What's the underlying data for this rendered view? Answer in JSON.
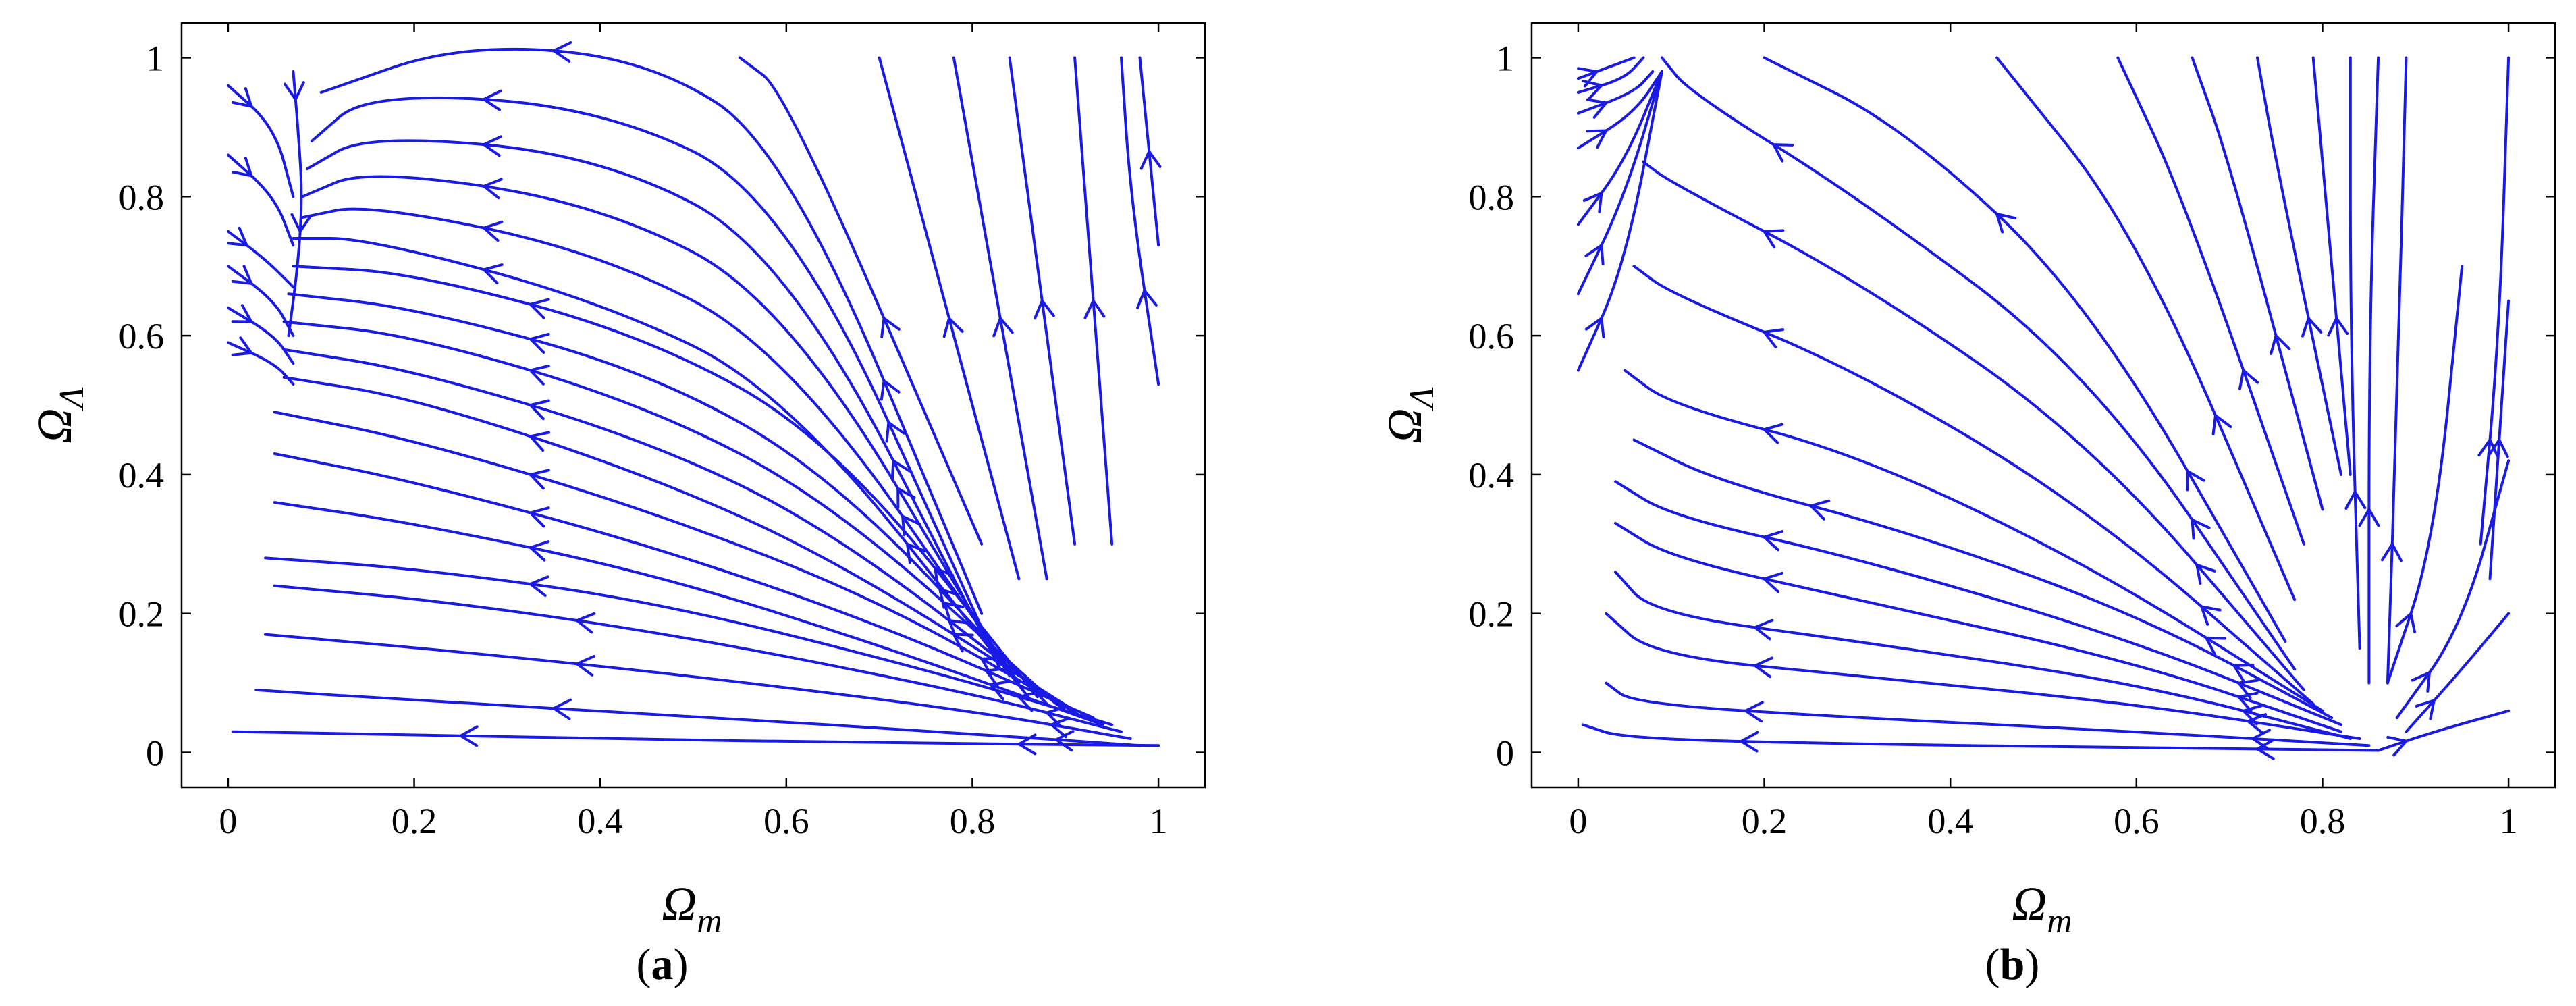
{
  "colors": {
    "stream": "#1a1ae6",
    "frame": "#000000",
    "background": "#ffffff"
  },
  "chart_data": [
    {
      "type": "streamplot",
      "panel_label": {
        "open": "(",
        "letter": "a",
        "close": ")"
      },
      "xlabel": {
        "main": "Ω",
        "sub": "m"
      },
      "ylabel": {
        "main": "Ω",
        "sub": "Λ"
      },
      "xlim": [
        -0.05,
        1.05
      ],
      "ylim": [
        -0.05,
        1.05
      ],
      "xticks": [
        0,
        0.2,
        0.4,
        0.6,
        0.8,
        1
      ],
      "xtick_labels": [
        "0",
        "0.2",
        "0.4",
        "0.6",
        "0.8",
        "1"
      ],
      "yticks": [
        0,
        0.2,
        0.4,
        0.6,
        0.8,
        1
      ],
      "ytick_labels": [
        "0",
        "0.2",
        "0.4",
        "0.6",
        "0.8",
        "1"
      ],
      "grid": false,
      "flow": "from the point (1, 0) toward the line Ω_m ≈ 0.07",
      "streamlines": [
        [
          [
            1,
            0.01
          ],
          [
            0.7,
            0.014
          ],
          [
            0.4,
            0.02
          ],
          [
            0.1,
            0.028
          ],
          [
            0.005,
            0.03
          ]
        ],
        [
          [
            0.98,
            0.01
          ],
          [
            0.8,
            0.027
          ],
          [
            0.5,
            0.052
          ],
          [
            0.2,
            0.075
          ],
          [
            0.03,
            0.09
          ]
        ],
        [
          [
            0.97,
            0.02
          ],
          [
            0.8,
            0.06
          ],
          [
            0.5,
            0.11
          ],
          [
            0.25,
            0.145
          ],
          [
            0.04,
            0.17
          ]
        ],
        [
          [
            0.96,
            0.03
          ],
          [
            0.8,
            0.085
          ],
          [
            0.5,
            0.165
          ],
          [
            0.25,
            0.215
          ],
          [
            0.05,
            0.24
          ]
        ],
        [
          [
            0.95,
            0.04
          ],
          [
            0.75,
            0.12
          ],
          [
            0.45,
            0.22
          ],
          [
            0.2,
            0.265
          ],
          [
            0.04,
            0.28
          ]
        ],
        [
          [
            0.94,
            0.04
          ],
          [
            0.7,
            0.155
          ],
          [
            0.45,
            0.26
          ],
          [
            0.2,
            0.33
          ],
          [
            0.05,
            0.36
          ]
        ],
        [
          [
            0.93,
            0.05
          ],
          [
            0.7,
            0.185
          ],
          [
            0.45,
            0.3
          ],
          [
            0.2,
            0.39
          ],
          [
            0.05,
            0.43
          ]
        ],
        [
          [
            0.92,
            0.05
          ],
          [
            0.7,
            0.22
          ],
          [
            0.45,
            0.35
          ],
          [
            0.2,
            0.45
          ],
          [
            0.05,
            0.49
          ]
        ],
        [
          [
            0.91,
            0.06
          ],
          [
            0.65,
            0.28
          ],
          [
            0.45,
            0.4
          ],
          [
            0.2,
            0.51
          ],
          [
            0.06,
            0.54
          ]
        ],
        [
          [
            0.9,
            0.06
          ],
          [
            0.65,
            0.32
          ],
          [
            0.45,
            0.45
          ],
          [
            0.2,
            0.55
          ],
          [
            0.06,
            0.58
          ]
        ],
        [
          [
            0.89,
            0.07
          ],
          [
            0.65,
            0.36
          ],
          [
            0.45,
            0.5
          ],
          [
            0.2,
            0.6
          ],
          [
            0.06,
            0.62
          ]
        ],
        [
          [
            0.88,
            0.07
          ],
          [
            0.65,
            0.4
          ],
          [
            0.45,
            0.55
          ],
          [
            0.2,
            0.64
          ],
          [
            0.065,
            0.66
          ]
        ],
        [
          [
            0.87,
            0.08
          ],
          [
            0.65,
            0.45
          ],
          [
            0.45,
            0.6
          ],
          [
            0.2,
            0.69
          ],
          [
            0.07,
            0.7
          ]
        ],
        [
          [
            0.86,
            0.08
          ],
          [
            0.6,
            0.52
          ],
          [
            0.4,
            0.65
          ],
          [
            0.15,
            0.74
          ],
          [
            0.07,
            0.74
          ]
        ],
        [
          [
            0.85,
            0.1
          ],
          [
            0.6,
            0.58
          ],
          [
            0.4,
            0.72
          ],
          [
            0.15,
            0.79
          ],
          [
            0.08,
            0.77
          ]
        ],
        [
          [
            0.84,
            0.11
          ],
          [
            0.6,
            0.65
          ],
          [
            0.4,
            0.79
          ],
          [
            0.15,
            0.84
          ],
          [
            0.08,
            0.8
          ]
        ],
        [
          [
            0.83,
            0.12
          ],
          [
            0.6,
            0.72
          ],
          [
            0.4,
            0.86
          ],
          [
            0.15,
            0.89
          ],
          [
            0.085,
            0.84
          ]
        ],
        [
          [
            0.82,
            0.15
          ],
          [
            0.6,
            0.8
          ],
          [
            0.4,
            0.93
          ],
          [
            0.15,
            0.95
          ],
          [
            0.09,
            0.88
          ]
        ],
        [
          [
            0.81,
            0.2
          ],
          [
            0.6,
            0.87
          ],
          [
            0.45,
            1
          ],
          [
            0.25,
            1.02
          ],
          [
            0.1,
            0.95
          ]
        ],
        [
          [
            0.81,
            0.3
          ],
          [
            0.6,
            0.95
          ],
          [
            0.55,
            1
          ]
        ],
        [
          [
            0.85,
            0.25
          ],
          [
            0.7,
            1
          ]
        ],
        [
          [
            0.88,
            0.25
          ],
          [
            0.78,
            1
          ]
        ],
        [
          [
            0.91,
            0.3
          ],
          [
            0.84,
            1
          ]
        ],
        [
          [
            0.95,
            0.3
          ],
          [
            0.91,
            1
          ]
        ],
        [
          [
            1,
            0.53
          ],
          [
            0.97,
            0.8
          ],
          [
            0.96,
            1
          ]
        ],
        [
          [
            1,
            0.73
          ],
          [
            0.98,
            1
          ]
        ],
        [
          [
            0,
            0.96
          ],
          [
            0.05,
            0.9
          ],
          [
            0.07,
            0.8
          ]
        ],
        [
          [
            0,
            0.86
          ],
          [
            0.05,
            0.8
          ],
          [
            0.07,
            0.73
          ]
        ],
        [
          [
            0,
            0.75
          ],
          [
            0.04,
            0.71
          ],
          [
            0.07,
            0.67
          ]
        ],
        [
          [
            0,
            0.7
          ],
          [
            0.05,
            0.65
          ],
          [
            0.07,
            0.6
          ]
        ],
        [
          [
            0,
            0.64
          ],
          [
            0.05,
            0.6
          ],
          [
            0.07,
            0.56
          ]
        ],
        [
          [
            0,
            0.59
          ],
          [
            0.05,
            0.56
          ],
          [
            0.07,
            0.53
          ]
        ],
        [
          [
            0.07,
            0.98
          ],
          [
            0.075,
            0.9
          ],
          [
            0.08,
            0.8
          ],
          [
            0.075,
            0.7
          ],
          [
            0.065,
            0.6
          ]
        ]
      ]
    },
    {
      "type": "streamplot",
      "panel_label": {
        "open": "(",
        "letter": "b",
        "close": ")"
      },
      "xlabel": {
        "main": "Ω",
        "sub": "m"
      },
      "ylabel": {
        "main": "Ω",
        "sub": "Λ"
      },
      "xlim": [
        -0.05,
        1.05
      ],
      "ylim": [
        -0.05,
        1.05
      ],
      "xticks": [
        0,
        0.2,
        0.4,
        0.6,
        0.8,
        1
      ],
      "xtick_labels": [
        "0",
        "0.2",
        "0.4",
        "0.6",
        "0.8",
        "1"
      ],
      "yticks": [
        0,
        0.2,
        0.4,
        0.6,
        0.8,
        1
      ],
      "ytick_labels": [
        "0",
        "0.2",
        "0.4",
        "0.6",
        "0.8",
        "1"
      ],
      "grid": false,
      "flow": "from the point (0.86, 0) outward; toward Ω_m ≈ 0.09 on the left and toward Ω_m = 1 on the right",
      "streamlines": [
        [
          [
            0.86,
            0.003
          ],
          [
            0.6,
            0.007
          ],
          [
            0.3,
            0.012
          ],
          [
            0.05,
            0.02
          ],
          [
            0.005,
            0.04
          ]
        ],
        [
          [
            0.85,
            0.01
          ],
          [
            0.6,
            0.03
          ],
          [
            0.3,
            0.05
          ],
          [
            0.06,
            0.07
          ],
          [
            0.03,
            0.1
          ]
        ],
        [
          [
            0.84,
            0.02
          ],
          [
            0.6,
            0.07
          ],
          [
            0.3,
            0.11
          ],
          [
            0.08,
            0.14
          ],
          [
            0.03,
            0.2
          ]
        ],
        [
          [
            0.83,
            0.02
          ],
          [
            0.6,
            0.1
          ],
          [
            0.3,
            0.16
          ],
          [
            0.08,
            0.2
          ],
          [
            0.04,
            0.26
          ]
        ],
        [
          [
            0.82,
            0.03
          ],
          [
            0.6,
            0.13
          ],
          [
            0.3,
            0.22
          ],
          [
            0.1,
            0.28
          ],
          [
            0.04,
            0.33
          ]
        ],
        [
          [
            0.82,
            0.04
          ],
          [
            0.6,
            0.16
          ],
          [
            0.3,
            0.28
          ],
          [
            0.1,
            0.34
          ],
          [
            0.04,
            0.39
          ]
        ],
        [
          [
            0.81,
            0.05
          ],
          [
            0.6,
            0.2
          ],
          [
            0.35,
            0.32
          ],
          [
            0.15,
            0.39
          ],
          [
            0.06,
            0.45
          ]
        ],
        [
          [
            0.8,
            0.06
          ],
          [
            0.55,
            0.27
          ],
          [
            0.3,
            0.43
          ],
          [
            0.1,
            0.5
          ],
          [
            0.05,
            0.55
          ]
        ],
        [
          [
            0.79,
            0.07
          ],
          [
            0.55,
            0.35
          ],
          [
            0.3,
            0.55
          ],
          [
            0.1,
            0.66
          ],
          [
            0.06,
            0.7
          ]
        ],
        [
          [
            0.78,
            0.09
          ],
          [
            0.55,
            0.45
          ],
          [
            0.3,
            0.68
          ],
          [
            0.1,
            0.82
          ],
          [
            0.07,
            0.85
          ]
        ],
        [
          [
            0.77,
            0.12
          ],
          [
            0.55,
            0.55
          ],
          [
            0.3,
            0.8
          ],
          [
            0.12,
            0.95
          ],
          [
            0.09,
            1
          ]
        ],
        [
          [
            0.76,
            0.16
          ],
          [
            0.55,
            0.65
          ],
          [
            0.35,
            0.9
          ],
          [
            0.2,
            1
          ]
        ],
        [
          [
            0.77,
            0.22
          ],
          [
            0.6,
            0.75
          ],
          [
            0.45,
            1
          ]
        ],
        [
          [
            0.78,
            0.3
          ],
          [
            0.65,
            0.8
          ],
          [
            0.58,
            1
          ]
        ],
        [
          [
            0.8,
            0.35
          ],
          [
            0.7,
            0.85
          ],
          [
            0.66,
            1
          ]
        ],
        [
          [
            0.82,
            0.4
          ],
          [
            0.75,
            0.85
          ],
          [
            0.73,
            1
          ]
        ],
        [
          [
            0.83,
            0.4
          ],
          [
            0.8,
            0.85
          ],
          [
            0.79,
            1
          ]
        ],
        [
          [
            0.84,
            0.15
          ],
          [
            0.83,
            0.6
          ],
          [
            0.83,
            1
          ]
        ],
        [
          [
            0.85,
            0.1
          ],
          [
            0.85,
            0.6
          ],
          [
            0.86,
            1
          ]
        ],
        [
          [
            0.87,
            0.1
          ],
          [
            0.88,
            0.5
          ],
          [
            0.89,
            1
          ]
        ],
        [
          [
            0.87,
            0.1
          ],
          [
            0.92,
            0.3
          ],
          [
            0.95,
            0.7
          ]
        ],
        [
          [
            0.88,
            0.05
          ],
          [
            0.95,
            0.18
          ],
          [
            1,
            0.42
          ]
        ],
        [
          [
            0.89,
            0.03
          ],
          [
            0.95,
            0.12
          ],
          [
            1,
            0.2
          ]
        ],
        [
          [
            0.86,
            0.003
          ],
          [
            0.92,
            0.03
          ],
          [
            1,
            0.06
          ]
        ],
        [
          [
            0.97,
            0.3
          ],
          [
            0.99,
            0.6
          ],
          [
            1,
            1
          ]
        ],
        [
          [
            0.98,
            0.25
          ],
          [
            1,
            0.65
          ]
        ],
        [
          [
            0,
            0.97
          ],
          [
            0.04,
            0.99
          ],
          [
            0.06,
            1
          ]
        ],
        [
          [
            0,
            0.95
          ],
          [
            0.05,
            0.97
          ],
          [
            0.07,
            1
          ]
        ],
        [
          [
            0,
            0.92
          ],
          [
            0.06,
            0.95
          ],
          [
            0.08,
            0.98
          ]
        ],
        [
          [
            0,
            0.87
          ],
          [
            0.06,
            0.92
          ],
          [
            0.09,
            0.98
          ]
        ],
        [
          [
            0,
            0.76
          ],
          [
            0.05,
            0.85
          ],
          [
            0.09,
            0.98
          ]
        ],
        [
          [
            0,
            0.66
          ],
          [
            0.05,
            0.8
          ],
          [
            0.09,
            0.98
          ]
        ],
        [
          [
            0,
            0.55
          ],
          [
            0.05,
            0.7
          ],
          [
            0.09,
            0.98
          ]
        ]
      ]
    }
  ]
}
